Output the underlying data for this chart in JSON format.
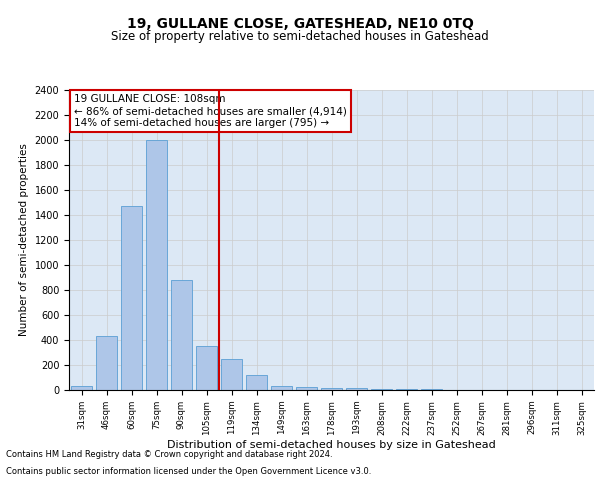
{
  "title1": "19, GULLANE CLOSE, GATESHEAD, NE10 0TQ",
  "title2": "Size of property relative to semi-detached houses in Gateshead",
  "xlabel": "Distribution of semi-detached houses by size in Gateshead",
  "ylabel": "Number of semi-detached properties",
  "categories": [
    "31sqm",
    "46sqm",
    "60sqm",
    "75sqm",
    "90sqm",
    "105sqm",
    "119sqm",
    "134sqm",
    "149sqm",
    "163sqm",
    "178sqm",
    "193sqm",
    "208sqm",
    "222sqm",
    "237sqm",
    "252sqm",
    "267sqm",
    "281sqm",
    "296sqm",
    "311sqm",
    "325sqm"
  ],
  "values": [
    30,
    430,
    1470,
    2000,
    880,
    350,
    250,
    120,
    35,
    25,
    20,
    15,
    10,
    5,
    5,
    0,
    0,
    0,
    0,
    0,
    0
  ],
  "bar_color": "#aec6e8",
  "bar_edge_color": "#5a9fd4",
  "vline_color": "#cc0000",
  "annotation_box_text": "19 GULLANE CLOSE: 108sqm\n← 86% of semi-detached houses are smaller (4,914)\n14% of semi-detached houses are larger (795) →",
  "annotation_box_color": "#ffffff",
  "annotation_box_edge_color": "#cc0000",
  "ylim": [
    0,
    2400
  ],
  "yticks": [
    0,
    200,
    400,
    600,
    800,
    1000,
    1200,
    1400,
    1600,
    1800,
    2000,
    2200,
    2400
  ],
  "grid_color": "#cccccc",
  "background_color": "#dce8f5",
  "footer1": "Contains HM Land Registry data © Crown copyright and database right 2024.",
  "footer2": "Contains public sector information licensed under the Open Government Licence v3.0.",
  "title1_fontsize": 10,
  "title2_fontsize": 8.5,
  "xlabel_fontsize": 8,
  "ylabel_fontsize": 7.5,
  "vline_bar_index": 5
}
